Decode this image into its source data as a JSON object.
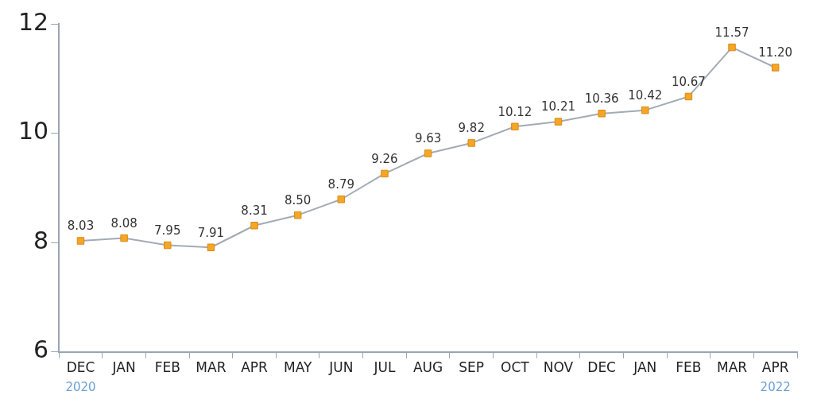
{
  "chart_data": {
    "type": "line",
    "categories": [
      "DEC",
      "JAN",
      "FEB",
      "MAR",
      "APR",
      "MAY",
      "JUN",
      "JUL",
      "AUG",
      "SEP",
      "OCT",
      "NOV",
      "DEC",
      "JAN",
      "FEB",
      "MAR",
      "APR"
    ],
    "series": [
      {
        "color": "#f5a623",
        "values": [
          8.03,
          8.08,
          7.95,
          7.91,
          8.31,
          8.5,
          8.79,
          9.26,
          9.63,
          9.82,
          10.12,
          10.21,
          10.36,
          10.42,
          10.67,
          11.57,
          11.2
        ],
        "value_labels": [
          "8.03",
          "8.08",
          "7.95",
          "7.91",
          "8.31",
          "8.50",
          "8.79",
          "9.26",
          "9.63",
          "9.82",
          "10.12",
          "10.21",
          "10.36",
          "10.42",
          "10.67",
          "11.57",
          "11.20"
        ]
      }
    ],
    "ylim": [
      6,
      12
    ],
    "yticks": [
      6,
      8,
      10,
      12
    ],
    "grid": false,
    "legend": false,
    "marker": "square",
    "line_style": "solid",
    "annotations": [
      "2020",
      "2022"
    ]
  }
}
